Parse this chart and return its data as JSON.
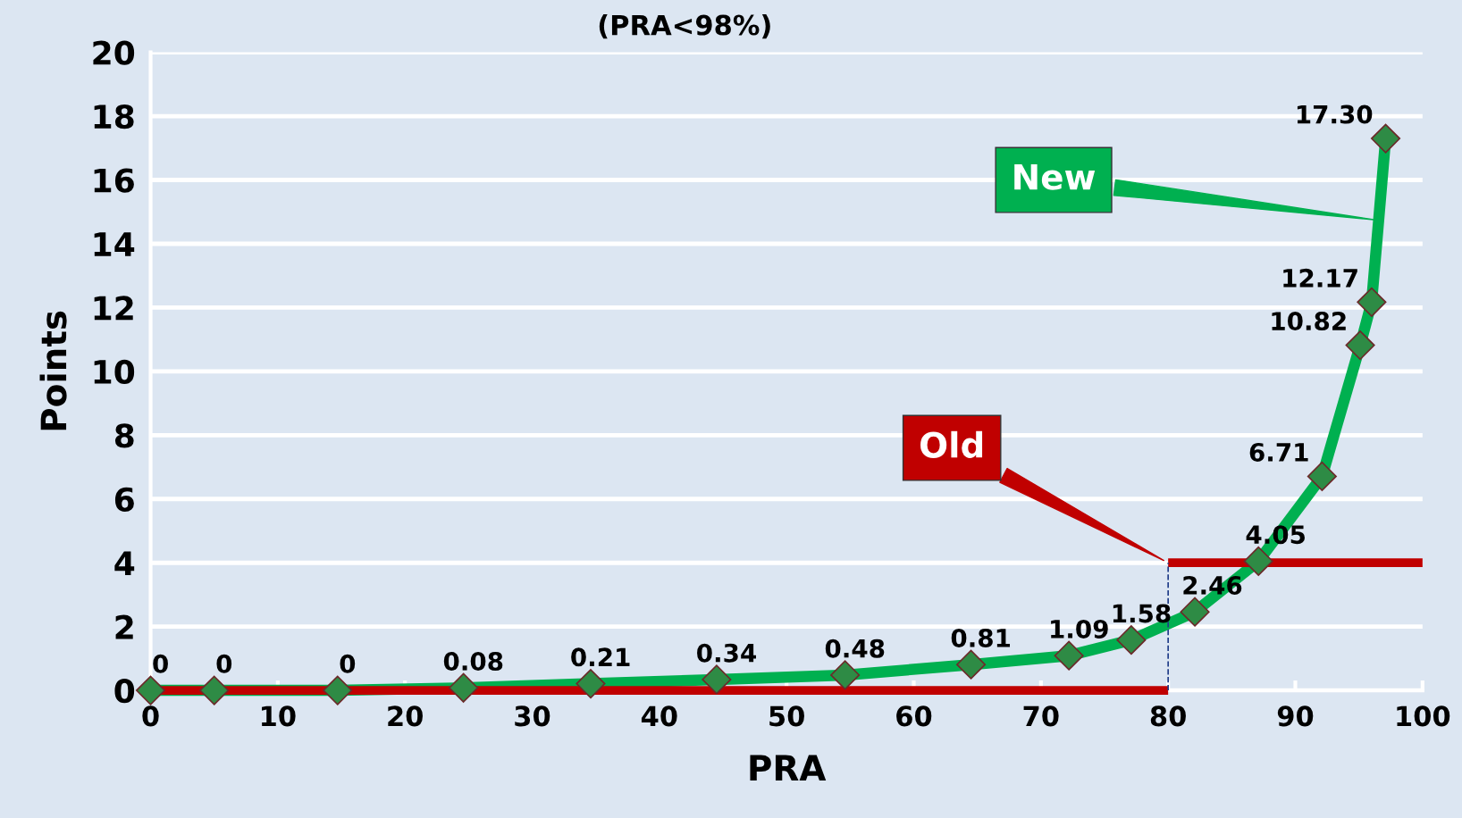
{
  "chart_data": {
    "type": "line",
    "title": "(PRA<98%)",
    "xlabel": "PRA",
    "ylabel": "Points",
    "xlim": [
      0,
      100
    ],
    "xticks": [
      0,
      10,
      20,
      30,
      40,
      50,
      60,
      70,
      80,
      90,
      100
    ],
    "ylim": [
      0,
      20
    ],
    "yticks": [
      0,
      2,
      4,
      6,
      8,
      10,
      12,
      14,
      16,
      18,
      20
    ],
    "grid": "y",
    "legend": false,
    "series": [
      {
        "color": "#c00000",
        "x": [
          0,
          80
        ],
        "values": [
          0,
          0
        ]
      },
      {
        "name": "Old",
        "color": "#c00000",
        "x": [
          80,
          100
        ],
        "values": [
          4,
          4
        ]
      },
      {
        "color": "#1f3c88",
        "x": [
          80,
          80
        ],
        "values": [
          0,
          4
        ],
        "line_style": "dashed"
      },
      {
        "name": "New",
        "color": "#00b050",
        "x": [
          0,
          5,
          14.7,
          24.6,
          34.6,
          44.5,
          54.6,
          64.5,
          72.2,
          77.1,
          82.1,
          87.1,
          92.1,
          95.1,
          96,
          97.1
        ],
        "values": [
          0,
          0,
          0,
          0.08,
          0.21,
          0.34,
          0.48,
          0.81,
          1.09,
          1.58,
          2.46,
          4.05,
          6.71,
          10.82,
          12.17,
          17.3
        ],
        "value_labels": [
          "0",
          "0",
          "0",
          "0.08",
          "0.21",
          "0.34",
          "0.48",
          "0.81",
          "1.09",
          "1.58",
          "2.46",
          "4.05",
          "6.71",
          "10.82",
          "12.17",
          "17.30"
        ],
        "marker": "diamond"
      }
    ]
  }
}
